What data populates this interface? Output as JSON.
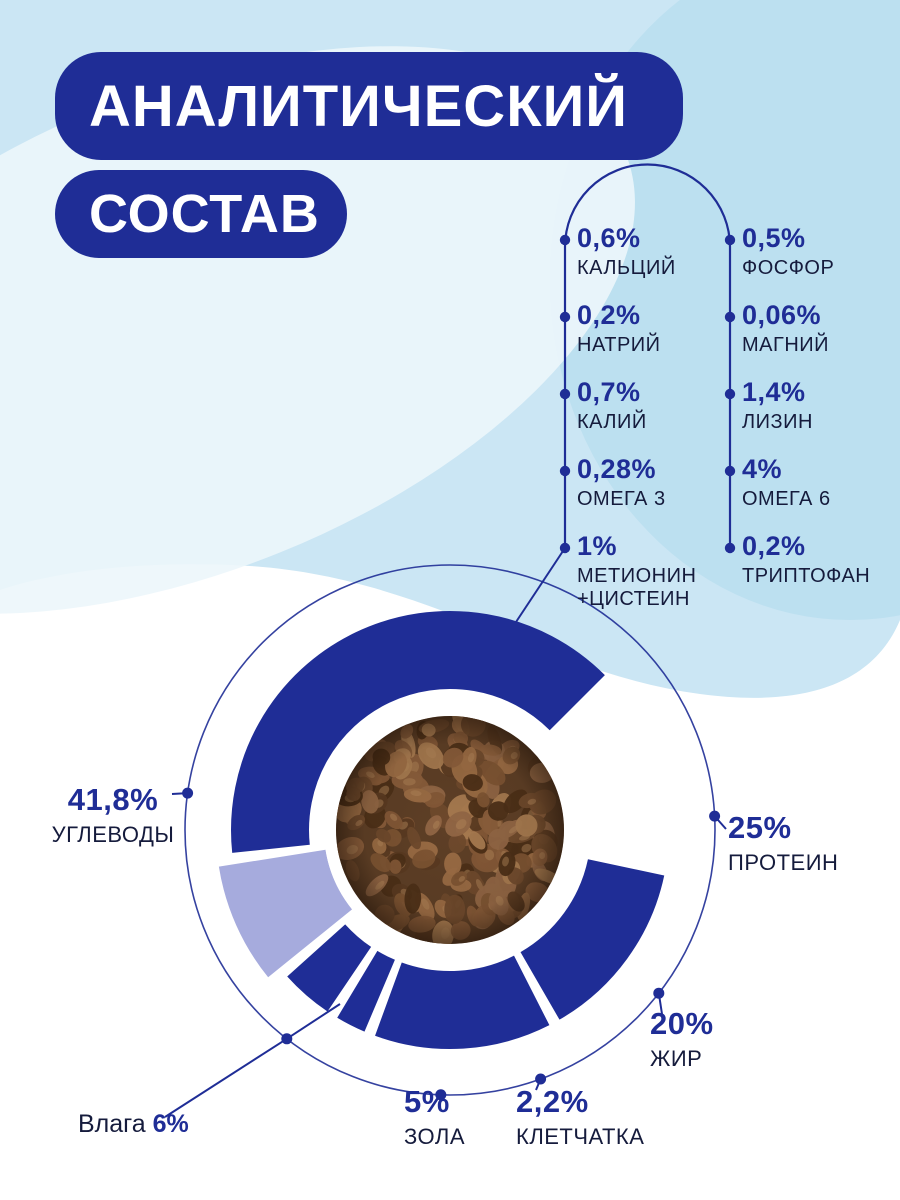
{
  "title": {
    "line1": "АНАЛИТИЧЕСКИЙ",
    "line2": "СОСТАВ"
  },
  "colors": {
    "primary": "#1f2d96",
    "moisture_segment": "#a6abdd",
    "background_top": "#cbe6f4",
    "title_text": "#ffffff"
  },
  "micronutrients": {
    "left": [
      {
        "value": "0,6%",
        "name": "КАЛЬЦИЙ"
      },
      {
        "value": "0,2%",
        "name": "НАТРИЙ"
      },
      {
        "value": "0,7%",
        "name": "КАЛИЙ"
      },
      {
        "value": "0,28%",
        "name": "ОМЕГА 3"
      },
      {
        "value": "1%",
        "name": "МЕТИОНИН +ЦИСТЕИН"
      }
    ],
    "right": [
      {
        "value": "0,5%",
        "name": "ФОСФОР"
      },
      {
        "value": "0,06%",
        "name": "МАГНИЙ"
      },
      {
        "value": "1,4%",
        "name": "ЛИЗИН"
      },
      {
        "value": "4%",
        "name": "ОМЕГА 6"
      },
      {
        "value": "0,2%",
        "name": "ТРИПТОФАН"
      }
    ]
  },
  "chart_data": {
    "type": "pie",
    "subtype": "donut",
    "title": "АНАЛИТИЧЕСКИЙ СОСТАВ",
    "unit": "%",
    "total": 100,
    "legend_position": "callouts-around",
    "center_image": "kibble-photo",
    "segments": [
      {
        "label": "ПРОТЕИН",
        "value": 25,
        "value_label": "25%",
        "color": "#1f2d96"
      },
      {
        "label": "ЖИР",
        "value": 20,
        "value_label": "20%",
        "color": "#1f2d96"
      },
      {
        "label": "КЛЕТЧАТКА",
        "value": 2.2,
        "value_label": "2,2%",
        "color": "#1f2d96"
      },
      {
        "label": "ЗОЛА",
        "value": 5,
        "value_label": "5%",
        "color": "#1f2d96"
      },
      {
        "label": "Влага",
        "value": 6,
        "value_label": "6%",
        "color": "#a6abdd"
      },
      {
        "label": "УГЛЕВОДЫ",
        "value": 41.8,
        "value_label": "41,8%",
        "color": "#1f2d96"
      }
    ]
  }
}
